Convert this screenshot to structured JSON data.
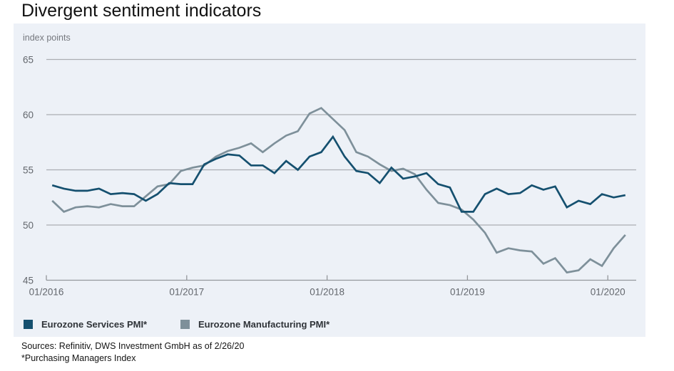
{
  "title": "Divergent sentiment indicators",
  "panel": {
    "unit_label": "index points",
    "background": "#edf1f7"
  },
  "legend": [
    {
      "label": "Eurozone Services PMI*",
      "color": "#15506f"
    },
    {
      "label": "Eurozone Manufacturing PMI*",
      "color": "#7e909a"
    }
  ],
  "footnotes": [
    "Sources: Refinitiv, DWS Investment GmbH as of 2/26/20",
    "*Purchasing Managers Index"
  ],
  "chart_data": {
    "type": "line",
    "title": "Divergent sentiment indicators",
    "ylabel": "index points",
    "xlabel": "",
    "ylim": [
      45,
      65
    ],
    "y_ticks": [
      45,
      50,
      55,
      60,
      65
    ],
    "grid": true,
    "legend_position": "bottom",
    "x": [
      "01/2016",
      "02/2016",
      "03/2016",
      "04/2016",
      "05/2016",
      "06/2016",
      "07/2016",
      "08/2016",
      "09/2016",
      "10/2016",
      "11/2016",
      "12/2016",
      "01/2017",
      "02/2017",
      "03/2017",
      "04/2017",
      "05/2017",
      "06/2017",
      "07/2017",
      "08/2017",
      "09/2017",
      "10/2017",
      "11/2017",
      "12/2017",
      "01/2018",
      "02/2018",
      "03/2018",
      "04/2018",
      "05/2018",
      "06/2018",
      "07/2018",
      "08/2018",
      "09/2018",
      "10/2018",
      "11/2018",
      "12/2018",
      "01/2019",
      "02/2019",
      "03/2019",
      "04/2019",
      "05/2019",
      "06/2019",
      "07/2019",
      "08/2019",
      "09/2019",
      "10/2019",
      "11/2019",
      "12/2019",
      "01/2020",
      "02/2020"
    ],
    "x_tick_labels": [
      "01/2016",
      "01/2017",
      "01/2018",
      "01/2019",
      "01/2020"
    ],
    "x_tick_indices": [
      0,
      12,
      24,
      36,
      48
    ],
    "series": [
      {
        "name": "Eurozone Services PMI*",
        "color": "#15506f",
        "values": [
          53.6,
          53.3,
          53.1,
          53.1,
          53.3,
          52.8,
          52.9,
          52.8,
          52.2,
          52.8,
          53.8,
          53.7,
          53.7,
          55.5,
          56.0,
          56.4,
          56.3,
          55.4,
          55.4,
          54.7,
          55.8,
          55.0,
          56.2,
          56.6,
          58.0,
          56.2,
          54.9,
          54.7,
          53.8,
          55.2,
          54.2,
          54.4,
          54.7,
          53.7,
          53.4,
          51.2,
          51.2,
          52.8,
          53.3,
          52.8,
          52.9,
          53.6,
          53.2,
          53.5,
          51.6,
          52.2,
          51.9,
          52.8,
          52.5,
          52.7
        ]
      },
      {
        "name": "Eurozone Manufacturing PMI*",
        "color": "#7e909a",
        "values": [
          52.2,
          51.2,
          51.6,
          51.7,
          51.6,
          51.9,
          51.7,
          51.7,
          52.6,
          53.5,
          53.7,
          54.9,
          55.2,
          55.4,
          56.2,
          56.7,
          57.0,
          57.4,
          56.6,
          57.4,
          58.1,
          58.5,
          60.1,
          60.6,
          59.6,
          58.6,
          56.6,
          56.2,
          55.5,
          54.9,
          55.1,
          54.6,
          53.2,
          52.0,
          51.8,
          51.4,
          50.5,
          49.3,
          47.5,
          47.9,
          47.7,
          47.6,
          46.5,
          47.0,
          45.7,
          45.9,
          46.9,
          46.3,
          47.9,
          49.1
        ]
      }
    ],
    "colors": {
      "grid": "#abaeb3",
      "axis": "#94979b",
      "tick_text": "#63676d"
    }
  }
}
